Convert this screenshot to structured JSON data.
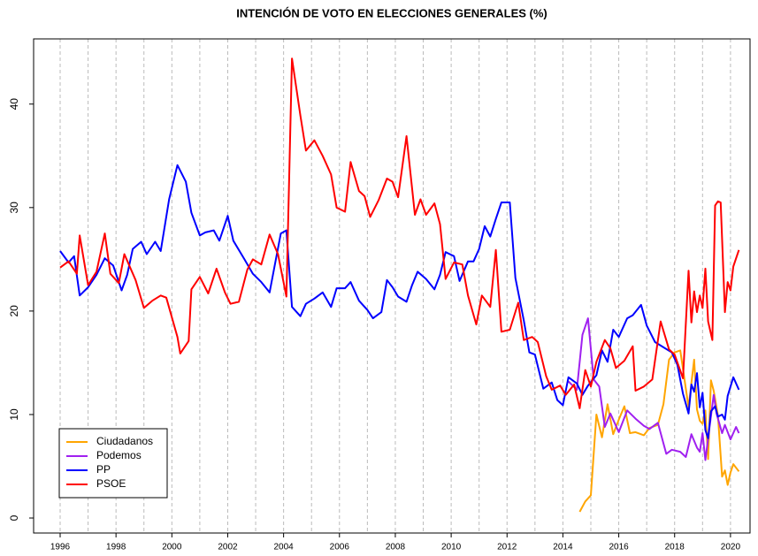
{
  "chart_data": {
    "type": "line",
    "title": "INTENCIÓN DE VOTO EN ELECCIONES GENERALES (%)",
    "xlim": [
      1995.05,
      2020.7
    ],
    "ylim": [
      -1.45,
      46.3
    ],
    "xticks": [
      1996,
      1998,
      2000,
      2002,
      2004,
      2006,
      2008,
      2010,
      2012,
      2014,
      2016,
      2018,
      2020
    ],
    "xgrid": [
      1996,
      1997,
      1998,
      1999,
      2000,
      2001,
      2002,
      2003,
      2004,
      2005,
      2006,
      2007,
      2008,
      2009,
      2010,
      2011,
      2012,
      2013,
      2014,
      2015,
      2016,
      2017,
      2018,
      2019,
      2020
    ],
    "yticks": [
      0,
      10,
      20,
      30,
      40
    ],
    "legend": "bottom-left",
    "series": [
      {
        "name": "Ciudadanos",
        "color": "#ffa500",
        "x": [
          2014.6,
          2014.8,
          2015.0,
          2015.2,
          2015.4,
          2015.6,
          2015.8,
          2016.0,
          2016.2,
          2016.4,
          2016.6,
          2016.9,
          2017.1,
          2017.4,
          2017.6,
          2017.8,
          2018.0,
          2018.2,
          2018.5,
          2018.7,
          2018.8,
          2018.9,
          2019.0,
          2019.1,
          2019.2,
          2019.3,
          2019.4,
          2019.55,
          2019.7,
          2019.8,
          2019.9,
          2020.0,
          2020.1,
          2020.3
        ],
        "values": [
          0.6,
          1.6,
          2.2,
          10.0,
          7.8,
          11.0,
          8.1,
          9.5,
          10.8,
          8.2,
          8.3,
          8.0,
          8.7,
          9.0,
          11.0,
          15.3,
          16.0,
          16.2,
          10.7,
          15.3,
          10.5,
          9.4,
          9.1,
          10.4,
          5.7,
          13.3,
          12.3,
          9.9,
          4.0,
          4.6,
          3.2,
          4.4,
          5.2,
          4.5
        ]
      },
      {
        "name": "Podemos",
        "color": "#a020f0",
        "x": [
          2014.2,
          2014.5,
          2014.7,
          2014.9,
          2015.1,
          2015.3,
          2015.5,
          2015.7,
          2016.0,
          2016.3,
          2016.6,
          2016.9,
          2017.1,
          2017.4,
          2017.7,
          2017.9,
          2018.2,
          2018.4,
          2018.6,
          2018.8,
          2018.9,
          2019.0,
          2019.1,
          2019.2,
          2019.4,
          2019.5,
          2019.7,
          2019.8,
          2020.0,
          2020.2,
          2020.3
        ],
        "values": [
          13.2,
          12.4,
          17.7,
          19.3,
          13.4,
          12.7,
          8.8,
          10.1,
          8.3,
          10.4,
          9.6,
          8.9,
          8.6,
          9.2,
          6.2,
          6.6,
          6.4,
          5.9,
          8.1,
          6.8,
          6.4,
          8.2,
          5.6,
          7.7,
          11.9,
          10.1,
          8.2,
          9.0,
          7.6,
          8.8,
          8.2
        ]
      },
      {
        "name": "PP",
        "color": "#0000ff",
        "x": [
          1996.0,
          1996.3,
          1996.5,
          1996.7,
          1997.0,
          1997.3,
          1997.6,
          1997.9,
          1998.2,
          1998.4,
          1998.6,
          1998.9,
          1999.1,
          1999.4,
          1999.6,
          1999.9,
          2000.2,
          2000.5,
          2000.7,
          2001.0,
          2001.2,
          2001.5,
          2001.7,
          2002.0,
          2002.2,
          2002.6,
          2002.9,
          2003.2,
          2003.5,
          2003.9,
          2004.1,
          2004.3,
          2004.6,
          2004.8,
          2005.1,
          2005.4,
          2005.7,
          2005.9,
          2006.2,
          2006.4,
          2006.7,
          2007.0,
          2007.2,
          2007.5,
          2007.7,
          2007.9,
          2008.1,
          2008.4,
          2008.6,
          2008.8,
          2009.1,
          2009.4,
          2009.6,
          2009.8,
          2010.1,
          2010.3,
          2010.6,
          2010.8,
          2011.0,
          2011.2,
          2011.4,
          2011.6,
          2011.8,
          2012.1,
          2012.3,
          2012.6,
          2012.8,
          2013.0,
          2013.3,
          2013.6,
          2013.8,
          2014.0,
          2014.2,
          2014.5,
          2014.7,
          2014.9,
          2015.2,
          2015.4,
          2015.6,
          2015.8,
          2016.0,
          2016.3,
          2016.5,
          2016.8,
          2017.0,
          2017.3,
          2017.6,
          2017.9,
          2018.1,
          2018.3,
          2018.5,
          2018.6,
          2018.7,
          2018.8,
          2018.9,
          2019.0,
          2019.1,
          2019.2,
          2019.3,
          2019.45,
          2019.55,
          2019.7,
          2019.8,
          2019.9,
          2020.1,
          2020.3
        ],
        "values": [
          25.8,
          24.7,
          25.3,
          21.5,
          22.3,
          23.5,
          25.1,
          24.4,
          22.0,
          23.5,
          26.0,
          26.7,
          25.5,
          26.7,
          25.8,
          30.8,
          34.1,
          32.5,
          29.5,
          27.3,
          27.6,
          27.8,
          26.8,
          29.2,
          26.8,
          25.0,
          23.6,
          22.8,
          21.8,
          27.5,
          27.8,
          20.4,
          19.5,
          20.7,
          21.2,
          21.8,
          20.4,
          22.2,
          22.2,
          22.8,
          21.0,
          20.1,
          19.3,
          19.9,
          23.0,
          22.3,
          21.4,
          20.9,
          22.5,
          23.8,
          23.1,
          22.1,
          23.5,
          25.7,
          25.3,
          22.9,
          24.8,
          24.8,
          26.0,
          28.2,
          27.2,
          28.9,
          30.5,
          30.5,
          23.2,
          19.1,
          16.0,
          15.8,
          12.5,
          13.1,
          11.4,
          10.9,
          13.6,
          13.0,
          11.9,
          12.8,
          13.8,
          16.2,
          15.1,
          18.2,
          17.5,
          19.3,
          19.6,
          20.6,
          18.6,
          17.0,
          16.5,
          16.0,
          14.8,
          12.0,
          10.1,
          12.9,
          12.2,
          14.0,
          10.7,
          12.1,
          8.5,
          7.7,
          10.3,
          10.8,
          9.8,
          10.0,
          9.5,
          11.8,
          13.6,
          12.4
        ]
      },
      {
        "name": "PSOE",
        "color": "#ff0000",
        "x": [
          1996.0,
          1996.3,
          1996.6,
          1996.7,
          1997.0,
          1997.3,
          1997.6,
          1997.8,
          1998.1,
          1998.3,
          1998.7,
          1999.0,
          1999.3,
          1999.6,
          1999.8,
          2000.2,
          2000.3,
          2000.6,
          2000.7,
          2001.0,
          2001.3,
          2001.6,
          2001.9,
          2002.1,
          2002.4,
          2002.7,
          2002.9,
          2003.2,
          2003.5,
          2003.8,
          2004.1,
          2004.3,
          2004.6,
          2004.8,
          2005.1,
          2005.4,
          2005.7,
          2005.9,
          2006.2,
          2006.4,
          2006.7,
          2006.9,
          2007.1,
          2007.4,
          2007.7,
          2007.9,
          2008.1,
          2008.4,
          2008.7,
          2008.9,
          2009.1,
          2009.4,
          2009.6,
          2009.8,
          2010.1,
          2010.4,
          2010.6,
          2010.9,
          2011.1,
          2011.4,
          2011.6,
          2011.8,
          2012.1,
          2012.4,
          2012.6,
          2012.9,
          2013.1,
          2013.4,
          2013.6,
          2013.9,
          2014.1,
          2014.4,
          2014.6,
          2014.8,
          2015.0,
          2015.2,
          2015.5,
          2015.7,
          2015.9,
          2016.2,
          2016.5,
          2016.6,
          2016.9,
          2017.2,
          2017.5,
          2017.8,
          2018.0,
          2018.3,
          2018.5,
          2018.6,
          2018.7,
          2018.8,
          2018.9,
          2019.0,
          2019.1,
          2019.2,
          2019.35,
          2019.45,
          2019.55,
          2019.65,
          2019.8,
          2019.9,
          2020.0,
          2020.1,
          2020.3
        ],
        "values": [
          24.2,
          24.8,
          23.6,
          27.3,
          22.5,
          23.8,
          27.5,
          23.6,
          22.7,
          25.5,
          23.0,
          20.3,
          21.0,
          21.5,
          21.3,
          17.5,
          15.9,
          17.1,
          22.1,
          23.3,
          21.7,
          24.1,
          21.8,
          20.7,
          20.9,
          24.0,
          25.0,
          24.5,
          27.4,
          25.5,
          21.4,
          44.4,
          38.9,
          35.5,
          36.5,
          35.0,
          33.2,
          30.0,
          29.6,
          34.4,
          31.6,
          31.1,
          29.1,
          30.7,
          32.8,
          32.5,
          31.0,
          36.9,
          29.3,
          30.8,
          29.3,
          30.4,
          28.4,
          23.1,
          24.7,
          24.5,
          21.5,
          18.7,
          21.5,
          20.4,
          25.9,
          18.0,
          18.2,
          20.8,
          17.2,
          17.5,
          17.0,
          13.7,
          12.4,
          12.8,
          11.9,
          12.9,
          10.6,
          14.3,
          12.7,
          15.1,
          17.2,
          16.4,
          14.5,
          15.2,
          16.6,
          12.3,
          12.7,
          13.4,
          19.0,
          16.3,
          15.8,
          13.5,
          23.9,
          18.9,
          21.9,
          19.9,
          21.5,
          20.3,
          24.1,
          19.0,
          17.2,
          30.2,
          30.6,
          30.5,
          19.9,
          22.8,
          22.0,
          24.3,
          25.9
        ]
      }
    ]
  }
}
